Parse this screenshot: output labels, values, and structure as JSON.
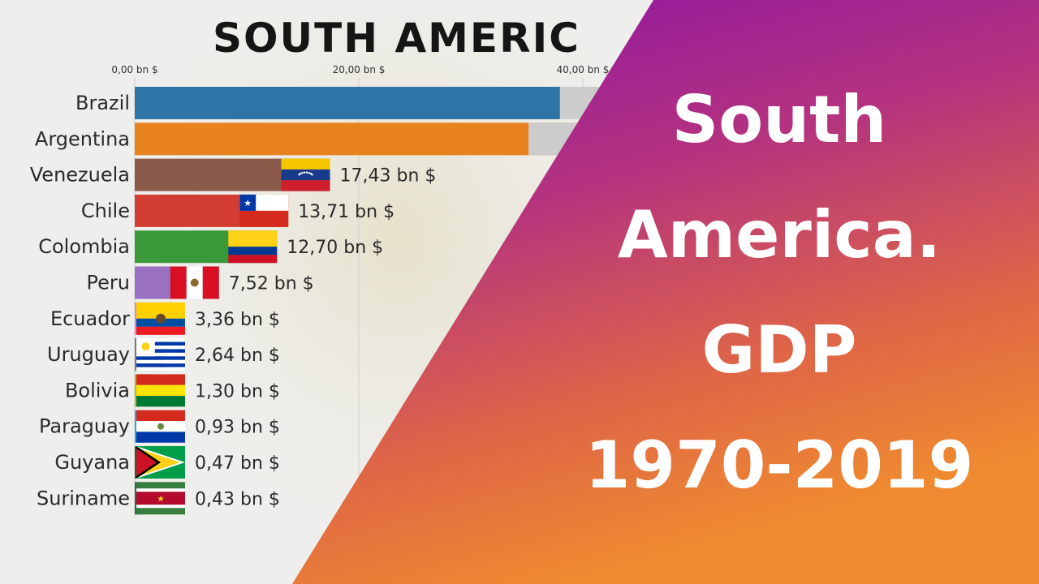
{
  "thumbnail": {
    "headline_lines": [
      "South",
      "America.",
      "GDP",
      "1970-2019"
    ],
    "gradient_colors": [
      "#8a12a8",
      "#b4327f",
      "#df6646",
      "#ef8a30"
    ],
    "chart_background": "#eeeeec"
  },
  "chart_data": {
    "type": "bar",
    "orientation": "horizontal",
    "title": "SOUTH AMERIC",
    "x_ticks": [
      "0,00 bn $",
      "20,00 bn $",
      "40,00 bn $"
    ],
    "x_tick_values": [
      0,
      20,
      40
    ],
    "xlim": [
      0,
      46
    ],
    "categories": [
      "Brazil",
      "Argentina",
      "Venezuela",
      "Chile",
      "Colombia",
      "Peru",
      "Ecuador",
      "Uruguay",
      "Bolivia",
      "Paraguay",
      "Guyana",
      "Suriname"
    ],
    "values": [
      42.3,
      39.5,
      17.43,
      13.71,
      12.7,
      7.52,
      3.36,
      2.64,
      1.3,
      0.93,
      0.47,
      0.43
    ],
    "value_labels": [
      "",
      "",
      "17,43 bn $",
      "13,71 bn $",
      "12,70 bn $",
      "7,52 bn $",
      "3,36 bn $",
      "2,64 bn $",
      "1,30 bn $",
      "0,93 bn $",
      "0,47 bn $",
      "0,43 bn $"
    ],
    "bar_colors": [
      "#2e74a6",
      "#e8821e",
      "#8c5a4a",
      "#d33c32",
      "#3a9a3a",
      "#9a70c0",
      "#e486bf",
      "#7a7a7a",
      "#b8b822",
      "#2aaad8",
      "#1a6a2a",
      "#2a6a4a"
    ],
    "flag_icons": [
      "flag-brazil",
      "flag-argentina",
      "flag-venezuela",
      "flag-chile",
      "flag-colombia",
      "flag-peru",
      "flag-ecuador",
      "flag-uruguay",
      "flag-bolivia",
      "flag-paraguay",
      "flag-guyana",
      "flag-suriname"
    ],
    "grid": true
  }
}
